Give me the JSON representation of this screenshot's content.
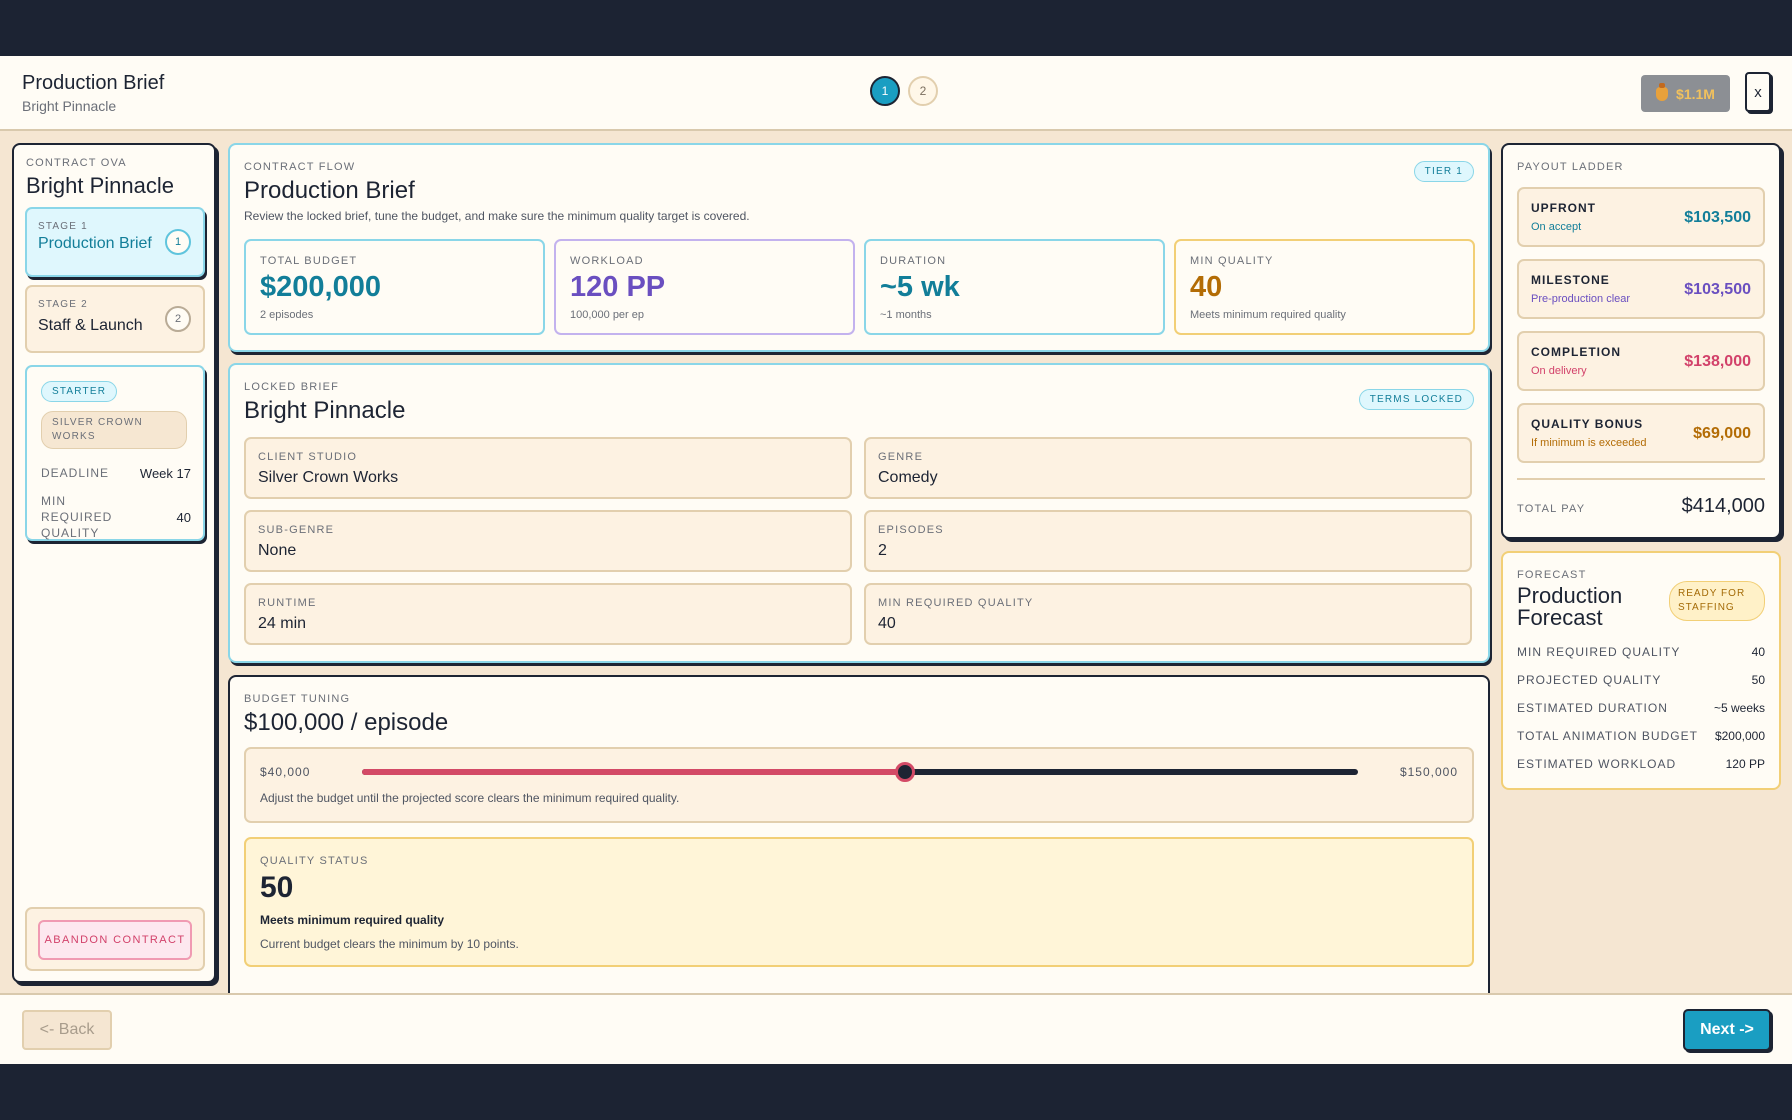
{
  "header": {
    "title": "Production Brief",
    "subtitle": "Bright Pinnacle",
    "steps": [
      "1",
      "2"
    ],
    "money": "$1.1M",
    "close_label": "x"
  },
  "sidebar": {
    "label": "CONTRACT OVA",
    "title": "Bright Pinnacle",
    "stages": [
      {
        "label": "STAGE 1",
        "name": "Production Brief",
        "num": "1"
      },
      {
        "label": "STAGE 2",
        "name": "Staff & Launch",
        "num": "2"
      }
    ],
    "chips": {
      "tier": "STARTER",
      "studio": "SILVER CROWN WORKS"
    },
    "deadline": {
      "label": "DEADLINE",
      "value": "Week 17"
    },
    "min_quality": {
      "label": "MIN REQUIRED QUALITY",
      "value": "40"
    },
    "abandon_label": "ABANDON CONTRACT"
  },
  "flow": {
    "label": "CONTRACT FLOW",
    "title": "Production Brief",
    "tag": "TIER 1",
    "desc": "Review the locked brief, tune the budget, and make sure the minimum quality target is covered.",
    "stats": [
      {
        "label": "TOTAL BUDGET",
        "value": "$200,000",
        "sub": "2 episodes",
        "color": "#127e99",
        "border": "#8ad6e8"
      },
      {
        "label": "WORKLOAD",
        "value": "120 PP",
        "sub": "100,000 per ep",
        "color": "#6a4fc0",
        "border": "#c3b2ee"
      },
      {
        "label": "DURATION",
        "value": "~5 wk",
        "sub": "~1 months",
        "color": "#127e99",
        "border": "#8ad6e8"
      },
      {
        "label": "MIN QUALITY",
        "value": "40",
        "sub": "Meets minimum required quality",
        "color": "#b36c05",
        "border": "#f2cf76"
      }
    ]
  },
  "brief": {
    "label": "LOCKED BRIEF",
    "title": "Bright Pinnacle",
    "tag": "TERMS LOCKED",
    "fields": [
      {
        "label": "CLIENT STUDIO",
        "value": "Silver Crown Works"
      },
      {
        "label": "GENRE",
        "value": "Comedy"
      },
      {
        "label": "SUB-GENRE",
        "value": "None"
      },
      {
        "label": "EPISODES",
        "value": "2"
      },
      {
        "label": "RUNTIME",
        "value": "24 min"
      },
      {
        "label": "MIN REQUIRED QUALITY",
        "value": "40"
      }
    ]
  },
  "budget": {
    "label": "BUDGET TUNING",
    "title": "$100,000 / episode",
    "slider_min_label": "$40,000",
    "slider_max_label": "$150,000",
    "slider_min": 40000,
    "slider_max": 150000,
    "slider_value": 100000,
    "hint": "Adjust the budget until the projected score clears the minimum required quality.",
    "quality": {
      "label": "QUALITY STATUS",
      "value": "50",
      "status": "Meets minimum required quality",
      "detail": "Current budget clears the minimum by 10 points."
    }
  },
  "payout": {
    "label": "PAYOUT LADDER",
    "items": [
      {
        "label": "UPFRONT",
        "sub": "On accept",
        "value": "$103,500",
        "color": "#127e99"
      },
      {
        "label": "MILESTONE",
        "sub": "Pre-production clear",
        "value": "$103,500",
        "color": "#6a4fc0"
      },
      {
        "label": "COMPLETION",
        "sub": "On delivery",
        "value": "$138,000",
        "color": "#d2416a"
      },
      {
        "label": "QUALITY BONUS",
        "sub": "If minimum is exceeded",
        "value": "$69,000",
        "color": "#b36c05"
      }
    ],
    "total_label": "TOTAL PAY",
    "total_value": "$414,000"
  },
  "forecast": {
    "label": "FORECAST",
    "title": "Production Forecast",
    "chip": "READY FOR STAFFING",
    "rows": [
      {
        "label": "MIN REQUIRED QUALITY",
        "value": "40"
      },
      {
        "label": "PROJECTED QUALITY",
        "value": "50"
      },
      {
        "label": "ESTIMATED DURATION",
        "value": "~5 weeks"
      },
      {
        "label": "TOTAL ANIMATION BUDGET",
        "value": "$200,000"
      },
      {
        "label": "ESTIMATED WORKLOAD",
        "value": "120 PP"
      }
    ]
  },
  "footer": {
    "back_label": "<- Back",
    "next_label": "Next ->"
  }
}
